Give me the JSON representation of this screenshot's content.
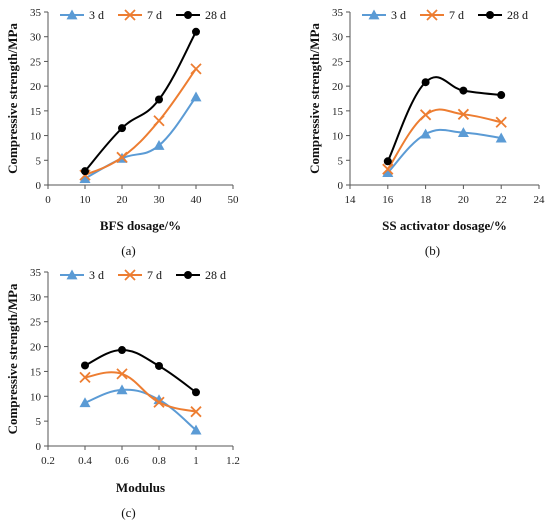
{
  "chart_data": [
    {
      "type": "line",
      "panel_label": "(a)",
      "xlabel": "BFS dosage/%",
      "ylabel": "Compressive strength/MPa",
      "xlim": [
        0,
        50
      ],
      "ylim": [
        0,
        35
      ],
      "xticks": [
        0,
        10,
        20,
        30,
        40,
        50
      ],
      "yticks": [
        0,
        5,
        10,
        15,
        20,
        25,
        30,
        35
      ],
      "x": [
        10,
        20,
        30,
        40
      ],
      "legend": "top",
      "series": [
        {
          "name": "3 d",
          "values": [
            1.3,
            5.4,
            8.0,
            17.8
          ],
          "color": "#5b9bd5",
          "marker": "triangle"
        },
        {
          "name": "7 d",
          "values": [
            2.0,
            5.6,
            13.0,
            23.5
          ],
          "color": "#ed7d31",
          "marker": "x"
        },
        {
          "name": "28 d",
          "values": [
            2.8,
            11.5,
            17.3,
            31.0
          ],
          "color": "#000000",
          "marker": "circle"
        }
      ]
    },
    {
      "type": "line",
      "panel_label": "(b)",
      "xlabel": "SS activator dosage/%",
      "ylabel": "Compressive strength/MPa",
      "xlim": [
        14,
        24
      ],
      "ylim": [
        0,
        35
      ],
      "xticks": [
        14,
        16,
        18,
        20,
        22,
        24
      ],
      "yticks": [
        0,
        5,
        10,
        15,
        20,
        25,
        30,
        35
      ],
      "x": [
        16,
        18,
        20,
        22
      ],
      "legend": "top",
      "series": [
        {
          "name": "3 d",
          "values": [
            2.5,
            10.3,
            10.6,
            9.5
          ],
          "color": "#5b9bd5",
          "marker": "triangle"
        },
        {
          "name": "7 d",
          "values": [
            3.2,
            14.2,
            14.3,
            12.7
          ],
          "color": "#ed7d31",
          "marker": "x"
        },
        {
          "name": "28 d",
          "values": [
            4.8,
            20.8,
            19.1,
            18.2
          ],
          "color": "#000000",
          "marker": "circle"
        }
      ]
    },
    {
      "type": "line",
      "panel_label": "(c)",
      "xlabel": "Modulus",
      "ylabel": "Compressive strength/MPa",
      "xlim": [
        0.2,
        1.2
      ],
      "ylim": [
        0,
        35
      ],
      "xticks": [
        "0.2",
        "0.4",
        "0.6",
        "0.8",
        "1",
        "1.2"
      ],
      "yticks": [
        0,
        5,
        10,
        15,
        20,
        25,
        30,
        35
      ],
      "x": [
        0.4,
        0.6,
        0.8,
        1.0
      ],
      "legend": "top",
      "series": [
        {
          "name": "3 d",
          "values": [
            8.7,
            11.3,
            9.3,
            3.2
          ],
          "color": "#5b9bd5",
          "marker": "triangle"
        },
        {
          "name": "7 d",
          "values": [
            13.8,
            14.5,
            8.8,
            6.9
          ],
          "color": "#ed7d31",
          "marker": "x"
        },
        {
          "name": "28 d",
          "values": [
            16.2,
            19.3,
            16.1,
            10.8
          ],
          "color": "#000000",
          "marker": "circle"
        }
      ]
    }
  ]
}
